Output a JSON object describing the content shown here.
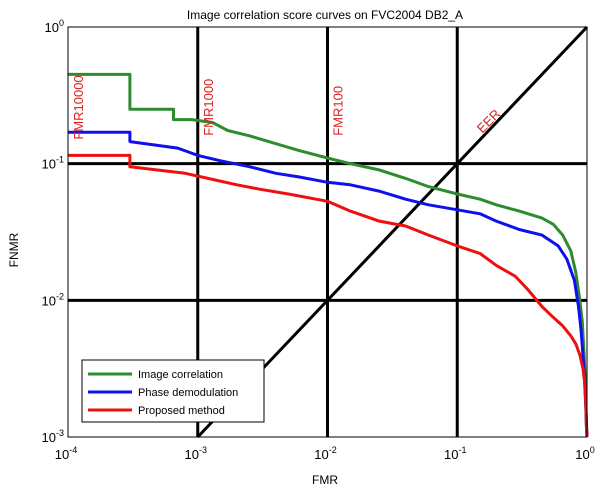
{
  "chart_data": {
    "type": "line",
    "title": "Image correlation score curves on FVC2004 DB2_A",
    "xlabel": "FMR",
    "ylabel": "FNMR",
    "x_scale": "log",
    "y_scale": "log",
    "xlim": [
      0.0001,
      1
    ],
    "ylim": [
      0.001,
      1
    ],
    "x_ticks": [
      {
        "base": "10",
        "exp": "-4"
      },
      {
        "base": "10",
        "exp": "-3"
      },
      {
        "base": "10",
        "exp": "-2"
      },
      {
        "base": "10",
        "exp": "-1"
      },
      {
        "base": "10",
        "exp": "0"
      }
    ],
    "y_ticks": [
      {
        "base": "10",
        "exp": "-3"
      },
      {
        "base": "10",
        "exp": "-2"
      },
      {
        "base": "10",
        "exp": "-1"
      },
      {
        "base": "10",
        "exp": "0"
      }
    ],
    "grid": "dotted",
    "legend_position": "bottom-left",
    "reference_lines": {
      "vertical": [
        0.001,
        0.01,
        0.1
      ],
      "horizontal": [
        0.1,
        0.01
      ],
      "eer_diagonal": true
    },
    "annotations": [
      {
        "text": "FMR10000",
        "x": 0.0001,
        "y": 0.15,
        "color": "#e02020"
      },
      {
        "text": "FMR1000",
        "x": 0.001,
        "y": 0.16,
        "color": "#e02020"
      },
      {
        "text": "FMR100",
        "x": 0.01,
        "y": 0.16,
        "color": "#e02020"
      },
      {
        "text": "EER",
        "x": 0.1,
        "y": 0.14,
        "color": "#e02020"
      }
    ],
    "series": [
      {
        "name": "Image correlation",
        "color": "#2e8b2e",
        "x": [
          0.0001,
          0.0003,
          0.0003,
          0.00065,
          0.00065,
          0.0009,
          0.0013,
          0.0017,
          0.0025,
          0.004,
          0.006,
          0.01,
          0.015,
          0.025,
          0.04,
          0.06,
          0.1,
          0.15,
          0.2,
          0.3,
          0.45,
          0.55,
          0.65,
          0.75,
          0.82,
          0.88,
          0.92,
          0.95,
          0.97,
          0.985,
          1.0
        ],
        "y": [
          0.45,
          0.45,
          0.25,
          0.25,
          0.21,
          0.21,
          0.2,
          0.175,
          0.16,
          0.14,
          0.125,
          0.11,
          0.1,
          0.09,
          0.078,
          0.068,
          0.06,
          0.055,
          0.05,
          0.045,
          0.04,
          0.036,
          0.03,
          0.023,
          0.016,
          0.01,
          0.007,
          0.004,
          0.0025,
          0.0015,
          0.001
        ]
      },
      {
        "name": "Phase demodulation",
        "color": "#1010ee",
        "x": [
          0.0001,
          0.0003,
          0.0003,
          0.0007,
          0.001,
          0.0015,
          0.0025,
          0.004,
          0.006,
          0.01,
          0.015,
          0.025,
          0.04,
          0.06,
          0.1,
          0.15,
          0.2,
          0.3,
          0.45,
          0.6,
          0.7,
          0.8,
          0.86,
          0.9,
          0.93,
          0.95,
          0.97,
          0.98,
          0.99,
          1.0
        ],
        "y": [
          0.17,
          0.17,
          0.145,
          0.13,
          0.115,
          0.105,
          0.095,
          0.085,
          0.08,
          0.073,
          0.07,
          0.063,
          0.055,
          0.05,
          0.046,
          0.043,
          0.038,
          0.033,
          0.03,
          0.025,
          0.02,
          0.014,
          0.009,
          0.006,
          0.004,
          0.003,
          0.002,
          0.0016,
          0.0012,
          0.001
        ]
      },
      {
        "name": "Proposed method",
        "color": "#ee1010",
        "x": [
          0.0001,
          0.0003,
          0.0003,
          0.0008,
          0.0012,
          0.002,
          0.003,
          0.005,
          0.01,
          0.015,
          0.025,
          0.04,
          0.06,
          0.1,
          0.15,
          0.2,
          0.28,
          0.35,
          0.45,
          0.55,
          0.65,
          0.75,
          0.82,
          0.88,
          0.93,
          0.96,
          0.98,
          0.99,
          1.0
        ],
        "y": [
          0.115,
          0.115,
          0.095,
          0.085,
          0.078,
          0.07,
          0.065,
          0.06,
          0.053,
          0.045,
          0.038,
          0.035,
          0.03,
          0.025,
          0.022,
          0.018,
          0.015,
          0.012,
          0.009,
          0.0075,
          0.0065,
          0.0055,
          0.0048,
          0.004,
          0.0032,
          0.0025,
          0.0017,
          0.0012,
          0.001
        ]
      }
    ]
  }
}
